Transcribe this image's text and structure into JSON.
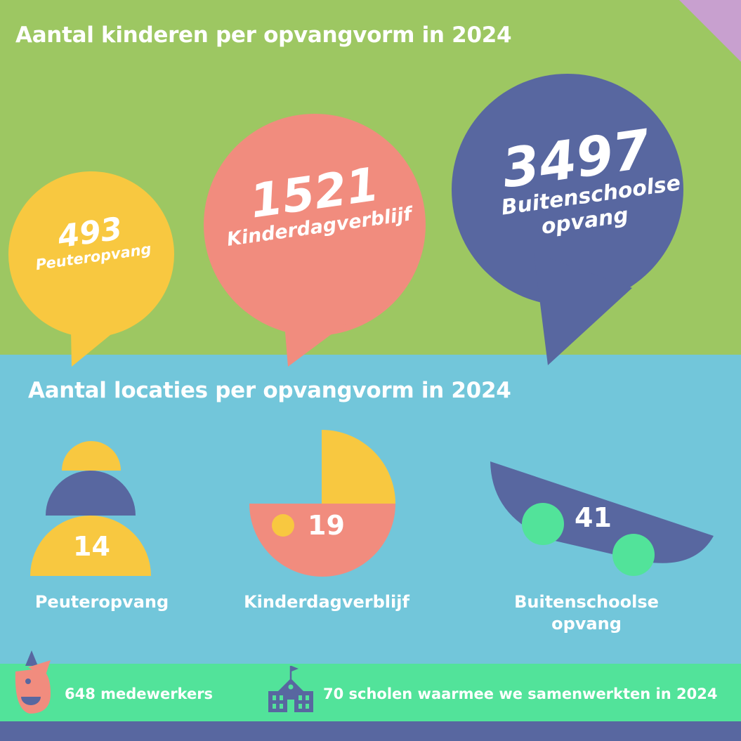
{
  "titles": {
    "children": "Aantal kinderen per opvangvorm in 2024",
    "locations": "Aantal locaties per opvangvorm in 2024"
  },
  "colors": {
    "green": "#9dc762",
    "blue_band": "#72c6da",
    "mint": "#52e39a",
    "navy": "#5867a0",
    "yellow": "#f8c840",
    "salmon": "#f18c7e",
    "lilac": "#c8a0cf"
  },
  "chart_data": [
    {
      "type": "bubble",
      "title": "Aantal kinderen per opvangvorm in 2024",
      "categories": [
        "Peuteropvang",
        "Kinderdagverblijf",
        "Buitenschoolse opvang"
      ],
      "values": [
        493,
        1521,
        3497
      ],
      "labels": [
        {
          "value": "493",
          "name": "Peuteropvang",
          "color": "#f8c840"
        },
        {
          "value": "1521",
          "name": "Kinderdagverblijf",
          "color": "#f18c7e"
        },
        {
          "value": "3497",
          "name": "Buitenschoolse opvang",
          "color": "#5867a0"
        }
      ]
    },
    {
      "type": "pictogram",
      "title": "Aantal locaties per opvangvorm in 2024",
      "categories": [
        "Peuteropvang",
        "Kinderdagverblijf",
        "Buitenschoolse opvang"
      ],
      "values": [
        14,
        19,
        41
      ],
      "labels": [
        {
          "value": "14",
          "name": "Peuteropvang",
          "icon": "stacked-blocks-icon"
        },
        {
          "value": "19",
          "name": "Kinderdagverblijf",
          "icon": "pram-icon"
        },
        {
          "value": "41",
          "name": "Buitenschoolse opvang",
          "icon": "skateboard-icon"
        }
      ]
    }
  ],
  "stats": [
    {
      "text": "648 medewerkers",
      "icon": "clown-face-icon"
    },
    {
      "text": "70 scholen waarmee we samenwerkten in 2024",
      "icon": "school-building-icon"
    }
  ]
}
